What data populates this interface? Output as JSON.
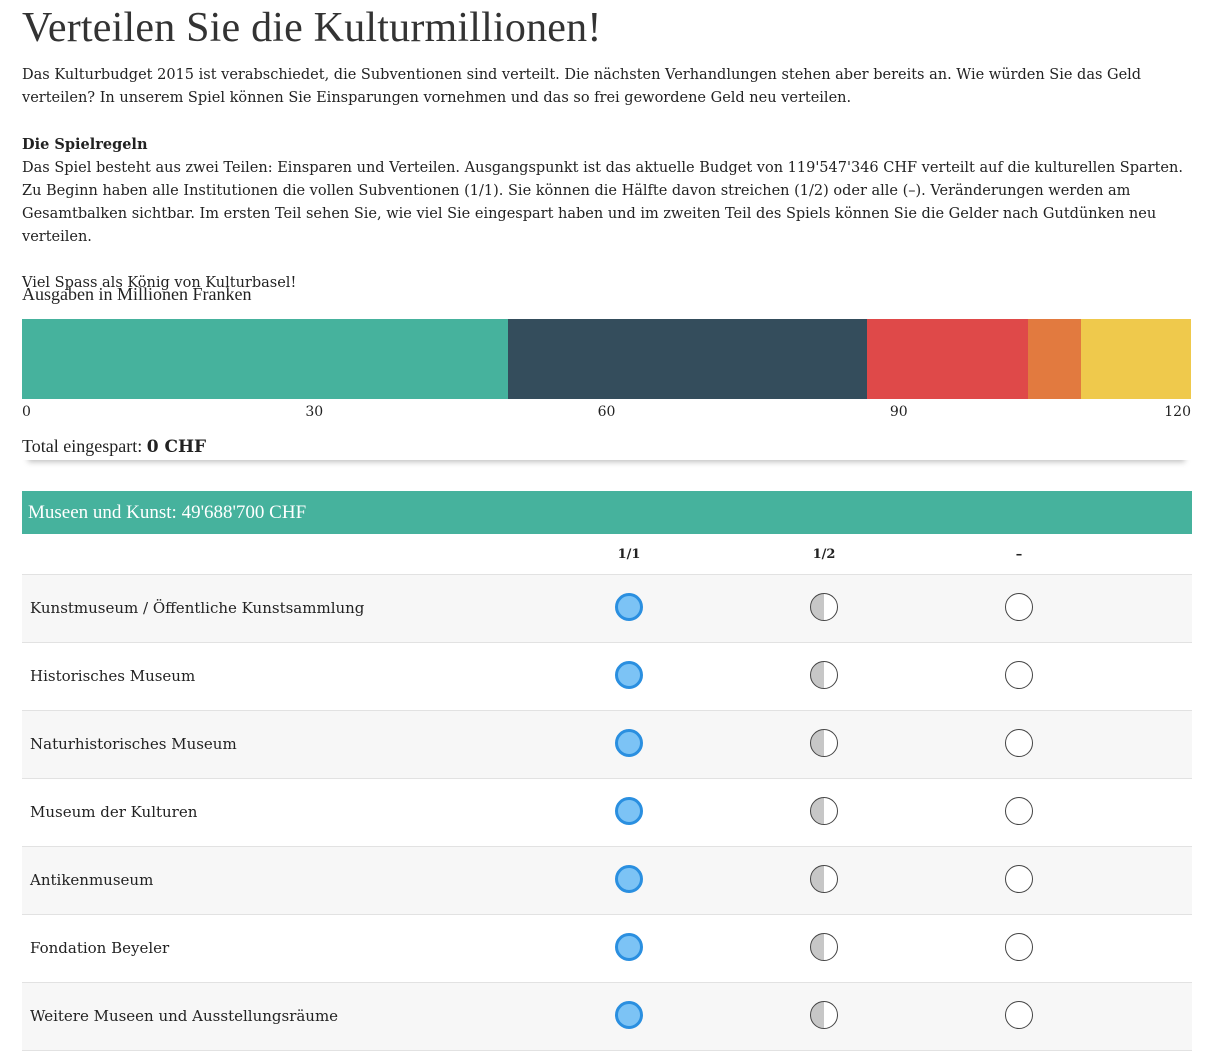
{
  "title": "Verteilen Sie die Kulturmillionen!",
  "intro": {
    "p1": "Das Kulturbudget 2015 ist verabschiedet, die Subventionen sind verteilt. Die nächsten Verhandlungen stehen aber bereits an. Wie würden Sie das Geld verteilen? In unserem Spiel können Sie Einsparungen vornehmen und das so frei gewordene Geld neu verteilen.",
    "rules_title": "Die Spielregeln",
    "rules_text": "Das Spiel besteht aus zwei Teilen: Einsparen und Verteilen. Ausgangspunkt ist das aktuelle Budget von 119'547'346 CHF verteilt auf die kulturellen Sparten. Zu Beginn haben alle Institutionen die vollen Subventionen (1/1). Sie können die Hälfte davon streichen (1/2) oder alle (–). Veränderungen werden am Gesamtbalken sichtbar. Im ersten Teil sehen Sie, wie viel Sie eingespart haben und im zweiten Teil des Spiels können Sie die Gelder nach Gutdünken neu verteilen.",
    "closing": "Viel Spass als König von Kulturbasel!"
  },
  "chart_data": {
    "type": "bar",
    "title": "Ausgaben in Millionen Franken",
    "orientation": "horizontal-stacked",
    "xlim": [
      0,
      120
    ],
    "ticks": [
      "0",
      "30",
      "60",
      "90",
      "120"
    ],
    "series": [
      {
        "value": 49.69,
        "color": "#46b29d"
      },
      {
        "value": 36.7,
        "color": "#344d5c"
      },
      {
        "value": 16.5,
        "color": "#df4949"
      },
      {
        "value": 5.4,
        "color": "#e27a3f"
      },
      {
        "value": 11.26,
        "color": "#efc94c"
      }
    ]
  },
  "total": {
    "label": "Total eingespart:",
    "value": "0 CHF"
  },
  "section": {
    "title": "Museen und Kunst: 49'688'700 CHF",
    "columns": [
      "1/1",
      "1/2",
      "–"
    ],
    "rows": [
      {
        "name": "Kunstmuseum / Öffentliche Kunstsammlung",
        "selected": "1/1"
      },
      {
        "name": "Historisches Museum",
        "selected": "1/1"
      },
      {
        "name": "Naturhistorisches Museum",
        "selected": "1/1"
      },
      {
        "name": "Museum der Kulturen",
        "selected": "1/1"
      },
      {
        "name": "Antikenmuseum",
        "selected": "1/1"
      },
      {
        "name": "Fondation Beyeler",
        "selected": "1/1"
      },
      {
        "name": "Weitere Museen und Ausstellungsräume",
        "selected": "1/1"
      }
    ]
  }
}
